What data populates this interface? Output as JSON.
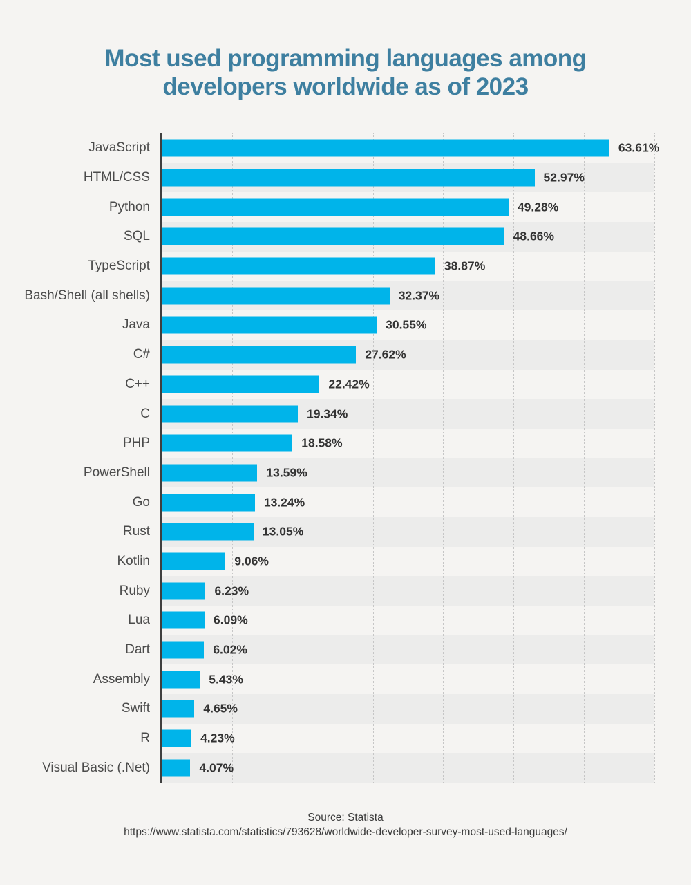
{
  "title": {
    "line1": "Most used programming languages among",
    "line2": "developers worldwide as of 2023"
  },
  "chart_data": {
    "type": "bar",
    "orientation": "horizontal",
    "title": "Most used programming languages among developers worldwide as of 2023",
    "categories": [
      "JavaScript",
      "HTML/CSS",
      "Python",
      "SQL",
      "TypeScript",
      "Bash/Shell (all shells)",
      "Java",
      "C#",
      "C++",
      "C",
      "PHP",
      "PowerShell",
      "Go",
      "Rust",
      "Kotlin",
      "Ruby",
      "Lua",
      "Dart",
      "Assembly",
      "Swift",
      "R",
      "Visual Basic (.Net)"
    ],
    "values": [
      63.61,
      52.97,
      49.28,
      48.66,
      38.87,
      32.37,
      30.55,
      27.62,
      22.42,
      19.34,
      18.58,
      13.59,
      13.24,
      13.05,
      9.06,
      6.23,
      6.09,
      6.02,
      5.43,
      4.65,
      4.23,
      4.07
    ],
    "value_labels": [
      "63.61%",
      "52.97%",
      "49.28%",
      "48.66%",
      "38.87%",
      "32.37%",
      "30.55%",
      "27.62%",
      "22.42%",
      "19.34%",
      "18.58%",
      "13.59%",
      "13.24%",
      "13.05%",
      "9.06%",
      "6.23%",
      "6.09%",
      "6.02%",
      "5.43%",
      "4.65%",
      "4.23%",
      "4.07%"
    ],
    "xlabel": "",
    "ylabel": "",
    "xlim": [
      0,
      70
    ],
    "gridline_interval": 10,
    "grid": "dotted-vertical",
    "legend": "none",
    "bar_color": "#00b4ea",
    "stripe_color": "#ececeb",
    "background_color": "#f5f4f2",
    "title_color": "#3e7fa0"
  },
  "footer": {
    "source": "Source: Statista",
    "url": "https://www.statista.com/statistics/793628/worldwide-developer-survey-most-used-languages/"
  }
}
